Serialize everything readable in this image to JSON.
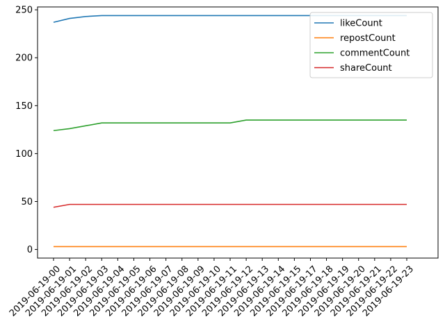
{
  "chart_data": {
    "type": "line",
    "title": "",
    "xlabel": "",
    "ylabel": "",
    "categories": [
      "2019-06-19-00",
      "2019-06-19-01",
      "2019-06-19-02",
      "2019-06-19-03",
      "2019-06-19-04",
      "2019-06-19-05",
      "2019-06-19-06",
      "2019-06-19-07",
      "2019-06-19-08",
      "2019-06-19-09",
      "2019-06-19-10",
      "2019-06-19-11",
      "2019-06-19-12",
      "2019-06-19-13",
      "2019-06-19-14",
      "2019-06-19-15",
      "2019-06-19-17",
      "2019-06-19-18",
      "2019-06-19-19",
      "2019-06-19-20",
      "2019-06-19-21",
      "2019-06-19-22",
      "2019-06-19-23"
    ],
    "ylim": [
      -9,
      253
    ],
    "yticks": [
      0,
      50,
      100,
      150,
      200,
      250
    ],
    "grid": false,
    "legend_position": "top-right",
    "series": [
      {
        "name": "likeCount",
        "color": "#1f77b4",
        "values": [
          237,
          241,
          243,
          244,
          244,
          244,
          244,
          244,
          244,
          244,
          244,
          244,
          244,
          244,
          244,
          244,
          244,
          244,
          244,
          244,
          244,
          244,
          244
        ]
      },
      {
        "name": "repostCount",
        "color": "#ff7f0e",
        "values": [
          3,
          3,
          3,
          3,
          3,
          3,
          3,
          3,
          3,
          3,
          3,
          3,
          3,
          3,
          3,
          3,
          3,
          3,
          3,
          3,
          3,
          3,
          3
        ]
      },
      {
        "name": "commentCount",
        "color": "#2ca02c",
        "values": [
          124,
          126,
          129,
          132,
          132,
          132,
          132,
          132,
          132,
          132,
          132,
          132,
          135,
          135,
          135,
          135,
          135,
          135,
          135,
          135,
          135,
          135,
          135
        ]
      },
      {
        "name": "shareCount",
        "color": "#d62728",
        "values": [
          44,
          47,
          47,
          47,
          47,
          47,
          47,
          47,
          47,
          47,
          47,
          47,
          47,
          47,
          47,
          47,
          47,
          47,
          47,
          47,
          47,
          47,
          47
        ]
      }
    ]
  }
}
